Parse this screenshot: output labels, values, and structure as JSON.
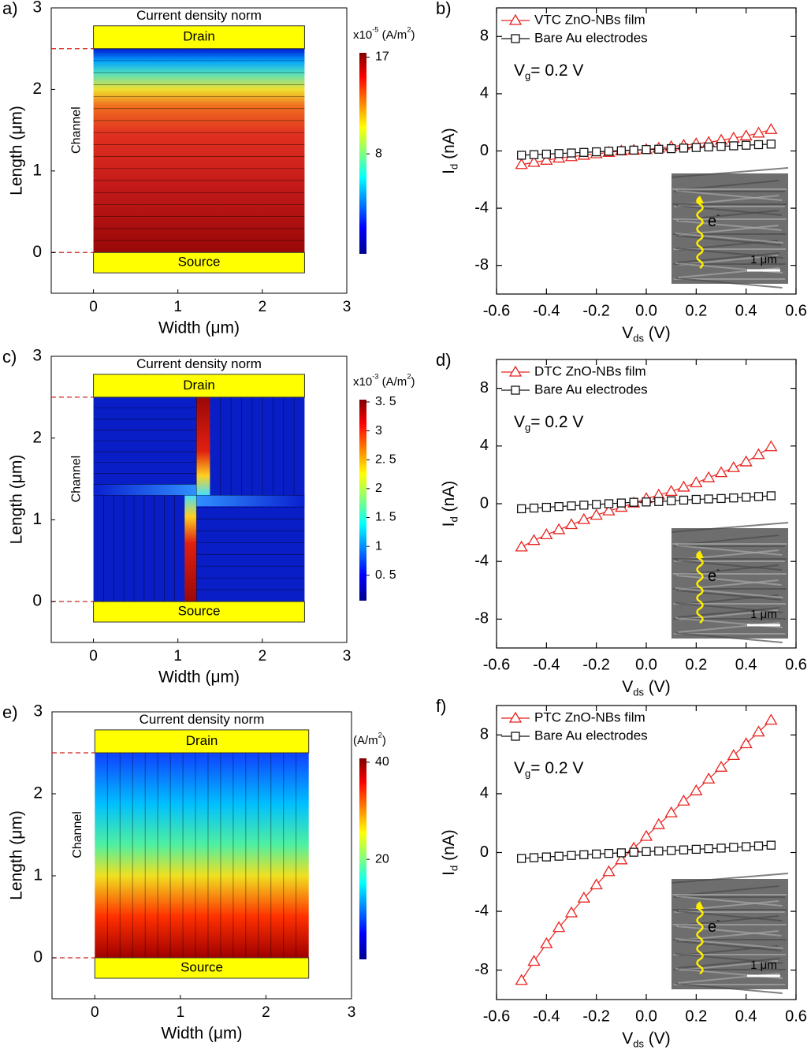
{
  "chart_data": [
    {
      "type": "heatmap",
      "panel_label": "a)",
      "title": "Current density norm",
      "drain_label": "Drain",
      "source_label": "Source",
      "channel_label": "Channel",
      "xlabel": "Width (μm)",
      "ylabel": "Length (μm)",
      "xlim": [
        -0.5,
        3
      ],
      "ylim": [
        -0.5,
        3
      ],
      "xticks": [
        0,
        1,
        2,
        3
      ],
      "yticks": [
        0,
        1,
        2,
        3
      ],
      "colorbar": {
        "label": [
          "x10",
          "-5",
          " (A/m",
          "2",
          ")"
        ],
        "lim": [
          -1.3,
          17.4
        ],
        "ticks": [
          8,
          17
        ]
      }
    },
    {
      "type": "line",
      "panel_label": "b)",
      "xlabel": [
        "V",
        "ds",
        " (V)"
      ],
      "ylabel": [
        "I",
        "d",
        " (nA)"
      ],
      "annotation": [
        "V",
        "g",
        "= 0.2 V"
      ],
      "inset_labels": [
        "e",
        "-"
      ],
      "scale_bar": "1 μm",
      "xlim": [
        -0.6,
        0.6
      ],
      "ylim": [
        -10,
        10
      ],
      "xticks": [
        -0.6,
        -0.4,
        -0.2,
        {
          "value": 0,
          "label": "0.0"
        },
        0.2,
        0.4,
        0.6
      ],
      "yticks": [
        -8,
        -4,
        0,
        4,
        8
      ],
      "x": [
        -0.5,
        -0.45,
        -0.4,
        -0.35,
        -0.3,
        -0.25,
        -0.2,
        -0.15,
        -0.1,
        -0.05,
        0,
        0.05,
        0.1,
        0.15,
        0.2,
        0.25,
        0.3,
        0.35,
        0.4,
        0.45,
        0.5
      ],
      "series": [
        {
          "name": "VTC ZnO-NBs film",
          "color": "#e8231f",
          "marker": "triangle",
          "values": [
            -0.95,
            -0.8,
            -0.65,
            -0.5,
            -0.4,
            -0.3,
            -0.2,
            -0.1,
            0,
            0.05,
            0.1,
            0.2,
            0.3,
            0.4,
            0.5,
            0.6,
            0.75,
            0.9,
            1.05,
            1.25,
            1.5
          ]
        },
        {
          "name": "Bare Au electrodes",
          "color": "#111111",
          "marker": "square",
          "values": [
            -0.3,
            -0.26,
            -0.22,
            -0.18,
            -0.14,
            -0.1,
            -0.06,
            -0.02,
            0.02,
            0.06,
            0.1,
            0.12,
            0.16,
            0.2,
            0.24,
            0.28,
            0.32,
            0.36,
            0.4,
            0.44,
            0.48
          ]
        }
      ]
    },
    {
      "type": "heatmap",
      "panel_label": "c)",
      "title": "Current density norm",
      "drain_label": "Drain",
      "source_label": "Source",
      "channel_label": "Channel",
      "xlabel": "Width (μm)",
      "ylabel": "Length (μm)",
      "xlim": [
        -0.5,
        3
      ],
      "ylim": [
        -0.5,
        3
      ],
      "xticks": [
        0,
        1,
        2,
        3
      ],
      "yticks": [
        0,
        1,
        2,
        3
      ],
      "colorbar": {
        "label": [
          "x10",
          "-3",
          " (A/m",
          "2",
          ")"
        ],
        "lim": [
          0.06,
          3.54
        ],
        "ticks": [
          {
            "value": 0.5,
            "label": "0. 5"
          },
          1,
          {
            "value": 1.5,
            "label": "1. 5"
          },
          2,
          {
            "value": 2.5,
            "label": "2. 5"
          },
          3,
          {
            "value": 3.5,
            "label": "3. 5"
          }
        ]
      }
    },
    {
      "type": "line",
      "panel_label": "d)",
      "xlabel": [
        "V",
        "ds",
        " (V)"
      ],
      "ylabel": [
        "I",
        "d",
        " (nA)"
      ],
      "annotation": [
        "V",
        "g",
        "= 0.2 V"
      ],
      "inset_labels": [
        "e",
        "-"
      ],
      "scale_bar": "1 μm",
      "xlim": [
        -0.6,
        0.6
      ],
      "ylim": [
        -10,
        10
      ],
      "xticks": [
        -0.6,
        -0.4,
        -0.2,
        {
          "value": 0,
          "label": "0.0"
        },
        0.2,
        0.4,
        0.6
      ],
      "yticks": [
        -8,
        -4,
        0,
        4,
        8
      ],
      "x": [
        -0.5,
        -0.45,
        -0.4,
        -0.35,
        -0.3,
        -0.25,
        -0.2,
        -0.15,
        -0.1,
        -0.05,
        0,
        0.05,
        0.1,
        0.15,
        0.2,
        0.25,
        0.3,
        0.35,
        0.4,
        0.45,
        0.5
      ],
      "series": [
        {
          "name": "DTC ZnO-NBs film",
          "color": "#e8231f",
          "marker": "triangle",
          "values": [
            -3,
            -2.55,
            -2.15,
            -1.8,
            -1.45,
            -1.1,
            -0.8,
            -0.5,
            -0.25,
            0.05,
            0.35,
            0.6,
            0.85,
            1.15,
            1.45,
            1.8,
            2.15,
            2.5,
            2.9,
            3.4,
            3.95
          ]
        },
        {
          "name": "Bare Au electrodes",
          "color": "#111111",
          "marker": "square",
          "values": [
            -0.35,
            -0.3,
            -0.25,
            -0.2,
            -0.15,
            -0.1,
            -0.05,
            0,
            0.05,
            0.1,
            0.12,
            0.15,
            0.2,
            0.25,
            0.3,
            0.33,
            0.36,
            0.4,
            0.45,
            0.5,
            0.55
          ]
        }
      ]
    },
    {
      "type": "heatmap",
      "panel_label": "e)",
      "title": "Current density norm",
      "drain_label": "Drain",
      "source_label": "Source",
      "channel_label": "Channel",
      "xlabel": "Width (μm)",
      "ylabel": "Length (μm)",
      "xlim": [
        -0.5,
        3
      ],
      "ylim": [
        -0.5,
        3
      ],
      "xticks": [
        0,
        1,
        2,
        3
      ],
      "yticks": [
        0,
        1,
        2,
        3
      ],
      "colorbar": {
        "label": [
          "(A/m",
          "2",
          ")"
        ],
        "lim": [
          -0.6,
          40.8
        ],
        "ticks": [
          20,
          40
        ]
      }
    },
    {
      "type": "line",
      "panel_label": "f)",
      "xlabel": [
        "V",
        "ds",
        " (V)"
      ],
      "ylabel": [
        "I",
        "d",
        " (nA)"
      ],
      "annotation": [
        "V",
        "g",
        "= 0.2 V"
      ],
      "inset_labels": [
        "e",
        "-"
      ],
      "scale_bar": "1 μm",
      "xlim": [
        -0.6,
        0.6
      ],
      "ylim": [
        -10,
        10
      ],
      "xticks": [
        -0.6,
        -0.4,
        -0.2,
        {
          "value": 0,
          "label": "0.0"
        },
        0.2,
        0.4,
        0.6
      ],
      "yticks": [
        -8,
        -4,
        0,
        4,
        8
      ],
      "x": [
        -0.5,
        -0.45,
        -0.4,
        -0.35,
        -0.3,
        -0.25,
        -0.2,
        -0.15,
        -0.1,
        -0.05,
        0,
        0.05,
        0.1,
        0.15,
        0.2,
        0.25,
        0.3,
        0.35,
        0.4,
        0.45,
        0.5
      ],
      "series": [
        {
          "name": "PTC ZnO-NBs film",
          "color": "#e8231f",
          "marker": "triangle",
          "values": [
            -8.7,
            -7.4,
            -6.2,
            -5.1,
            -4.1,
            -3.1,
            -2.2,
            -1.3,
            -0.5,
            0.3,
            1.1,
            1.9,
            2.7,
            3.5,
            4.2,
            5,
            5.8,
            6.6,
            7.4,
            8.2,
            9
          ]
        },
        {
          "name": "Bare Au electrodes",
          "color": "#111111",
          "marker": "square",
          "values": [
            -0.4,
            -0.35,
            -0.3,
            -0.25,
            -0.2,
            -0.15,
            -0.1,
            -0.06,
            -0.02,
            0.02,
            0.06,
            0.1,
            0.14,
            0.18,
            0.22,
            0.26,
            0.3,
            0.35,
            0.4,
            0.45,
            0.5
          ]
        }
      ]
    }
  ]
}
